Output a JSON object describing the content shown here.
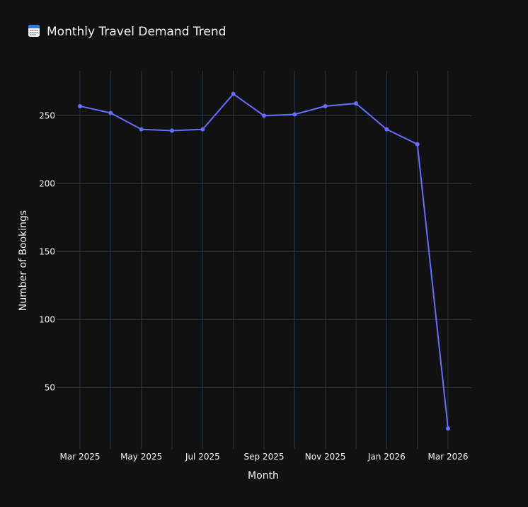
{
  "title_icon": "calendar-icon",
  "chart_data": {
    "type": "line",
    "title": "Monthly Travel Demand Trend",
    "xlabel": "Month",
    "ylabel": "Number of Bookings",
    "x": [
      "2025-03",
      "2025-04",
      "2025-05",
      "2025-06",
      "2025-07",
      "2025-08",
      "2025-09",
      "2025-10",
      "2025-11",
      "2025-12",
      "2026-01",
      "2026-02",
      "2026-03"
    ],
    "series": [
      {
        "values": [
          257,
          252,
          240,
          239,
          240,
          266,
          250,
          251,
          257,
          259,
          240,
          229,
          20
        ],
        "color": "#636efa"
      }
    ],
    "x_tick_labels": [
      "Mar 2025",
      "May 2025",
      "Jul 2025",
      "Sep 2025",
      "Nov 2025",
      "Jan 2026",
      "Mar 2026"
    ],
    "y_ticks": [
      50,
      100,
      150,
      200,
      250
    ],
    "y_tick_labels": [
      "50",
      "100",
      "150",
      "200",
      "250"
    ],
    "ylim": [
      5,
      283
    ],
    "grid": true,
    "legend": "none",
    "colors": {
      "background": "#111111",
      "grid": "#283442",
      "text": "#f2f5fa",
      "line": "#636efa"
    }
  }
}
